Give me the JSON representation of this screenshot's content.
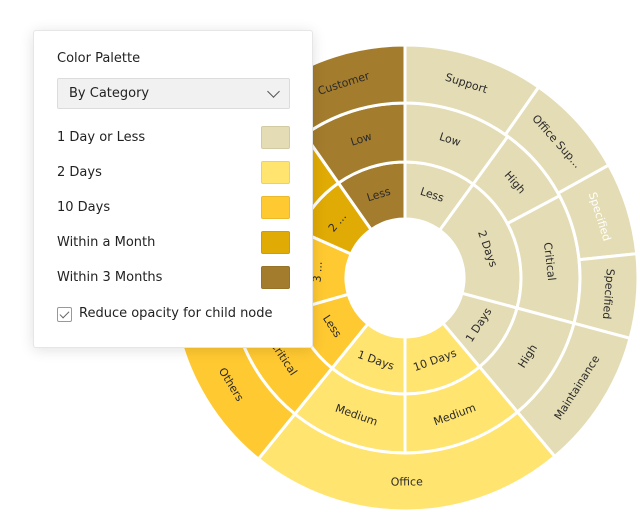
{
  "panel": {
    "title": "Color Palette",
    "palette_select": "By Category",
    "legend": [
      {
        "label": "1 Day or Less",
        "color": "#E4DCB4"
      },
      {
        "label": "2 Days",
        "color": "#FFE46F"
      },
      {
        "label": "10 Days",
        "color": "#FFC931"
      },
      {
        "label": "Within a Month",
        "color": "#E1AB05"
      },
      {
        "label": "Within 3 Months",
        "color": "#A47C2D"
      }
    ],
    "reduce_opacity_label": "Reduce opacity for child node",
    "reduce_opacity_checked": true
  },
  "chart_data": {
    "type": "sunburst",
    "categories": [
      "1 Day or Less",
      "2 Days",
      "10 Days",
      "Within a Month",
      "Within 3 Months"
    ],
    "rings": [
      [
        {
          "label": "Less",
          "value": 36,
          "category": 0
        },
        {
          "label": "2 Days",
          "value": 69,
          "category": 0
        },
        {
          "label": "1 Days",
          "value": 35,
          "category": 0
        },
        {
          "label": "10 Days",
          "value": 40,
          "category": 1
        },
        {
          "label": "1 Days",
          "value": 39,
          "category": 1
        },
        {
          "label": "Less",
          "value": 35,
          "category": 2
        },
        {
          "label": "3 ...",
          "value": 40,
          "category": 2
        },
        {
          "label": "2 ...",
          "value": 31,
          "category": 3
        },
        {
          "label": "Less",
          "value": 35,
          "category": 4
        }
      ],
      [
        {
          "label": "Low",
          "value": 36,
          "category": 0
        },
        {
          "label": "High",
          "value": 26,
          "category": 0
        },
        {
          "label": "Critical",
          "value": 43,
          "category": 0
        },
        {
          "label": "High",
          "value": 35,
          "category": 0
        },
        {
          "label": "Medium",
          "value": 40,
          "category": 1
        },
        {
          "label": "Medium",
          "value": 39,
          "category": 1
        },
        {
          "label": "Critical",
          "value": 35,
          "category": 2
        },
        {
          "label": "",
          "value": 40,
          "category": 2
        },
        {
          "label": "",
          "value": 31,
          "category": 3
        },
        {
          "label": "Low",
          "value": 35,
          "category": 4
        }
      ],
      [
        {
          "label": "Support",
          "value": 35,
          "category": 0
        },
        {
          "label": "Office Sup...",
          "value": 26,
          "category": 0
        },
        {
          "label": "Specified",
          "value": 23,
          "category": 0,
          "muted": true
        },
        {
          "label": "Specified",
          "value": 21,
          "category": 0
        },
        {
          "label": "Maintainance",
          "value": 35,
          "category": 0
        },
        {
          "label": "Office",
          "value": 79,
          "category": 1
        },
        {
          "label": "Others",
          "value": 39,
          "category": 2
        },
        {
          "label": "",
          "value": 36,
          "category": 2
        },
        {
          "label": "",
          "value": 31,
          "category": 3
        },
        {
          "label": "Customer",
          "value": 35,
          "category": 4
        }
      ]
    ]
  }
}
